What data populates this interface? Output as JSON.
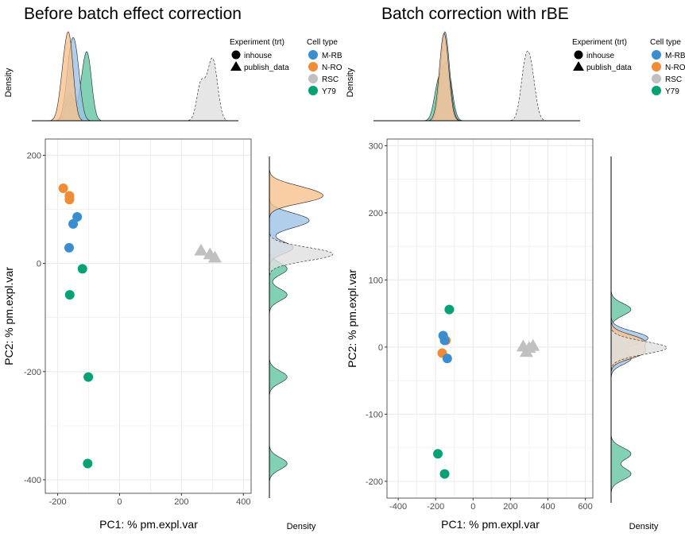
{
  "colors": {
    "M-RB": "#3a8ed0",
    "N-RO": "#f08c35",
    "RSC": "#c0c0c0",
    "Y79": "#06a175"
  },
  "legend": {
    "shape_title": "Experiment (trt)",
    "shapes": [
      {
        "label": "inhouse",
        "shape": "circle"
      },
      {
        "label": "publish_data",
        "shape": "triangle"
      }
    ],
    "color_title": "Cell type",
    "cells": [
      "M-RB",
      "N-RO",
      "RSC",
      "Y79"
    ]
  },
  "chart_data": [
    {
      "type": "scatter",
      "title": "Before batch effect correction",
      "xlabel": "PC1: % pm.expl.var",
      "ylabel": "PC2: % pm.expl.var",
      "top_density_label": "Density",
      "side_density_label": "Density",
      "xlim": [
        -240,
        425
      ],
      "ylim": [
        -425,
        230
      ],
      "xticks": [
        -200,
        0,
        200,
        400
      ],
      "yticks": [
        200,
        0,
        -200,
        -400
      ],
      "grid": true,
      "points": [
        {
          "x": -182,
          "y": 139,
          "cell": "N-RO",
          "shape": "circle"
        },
        {
          "x": -162,
          "y": 125,
          "cell": "N-RO",
          "shape": "circle"
        },
        {
          "x": -162,
          "y": 118,
          "cell": "N-RO",
          "shape": "circle"
        },
        {
          "x": -137,
          "y": 86,
          "cell": "M-RB",
          "shape": "circle"
        },
        {
          "x": -150,
          "y": 73,
          "cell": "M-RB",
          "shape": "circle"
        },
        {
          "x": -163,
          "y": 29,
          "cell": "M-RB",
          "shape": "circle"
        },
        {
          "x": -120,
          "y": -10,
          "cell": "Y79",
          "shape": "circle"
        },
        {
          "x": -161,
          "y": -58,
          "cell": "Y79",
          "shape": "circle"
        },
        {
          "x": -101,
          "y": -210,
          "cell": "Y79",
          "shape": "circle"
        },
        {
          "x": -103,
          "y": -370,
          "cell": "Y79",
          "shape": "circle"
        },
        {
          "x": 263,
          "y": 24,
          "cell": "RSC",
          "shape": "triangle"
        },
        {
          "x": 292,
          "y": 17,
          "cell": "RSC",
          "shape": "triangle"
        },
        {
          "x": 308,
          "y": 11,
          "cell": "RSC",
          "shape": "triangle"
        }
      ]
    },
    {
      "type": "scatter",
      "title": "Batch correction with rBE",
      "xlabel": "PC1: % pm.expl.var",
      "ylabel": "PC2: % pm.expl.var",
      "top_density_label": "Density",
      "side_density_label": "Density",
      "xlim": [
        -460,
        640
      ],
      "ylim": [
        -225,
        310
      ],
      "xticks": [
        -400,
        -200,
        0,
        200,
        400,
        600
      ],
      "yticks": [
        300,
        200,
        100,
        0,
        -100,
        -200
      ],
      "grid": true,
      "points": [
        {
          "x": -145,
          "y": 10,
          "cell": "N-RO",
          "shape": "circle"
        },
        {
          "x": -165,
          "y": -9,
          "cell": "N-RO",
          "shape": "circle"
        },
        {
          "x": -160,
          "y": 17,
          "cell": "M-RB",
          "shape": "circle"
        },
        {
          "x": -152,
          "y": 10,
          "cell": "M-RB",
          "shape": "circle"
        },
        {
          "x": -138,
          "y": -17,
          "cell": "M-RB",
          "shape": "circle"
        },
        {
          "x": -127,
          "y": 56,
          "cell": "Y79",
          "shape": "circle"
        },
        {
          "x": -188,
          "y": -159,
          "cell": "Y79",
          "shape": "circle"
        },
        {
          "x": -152,
          "y": -189,
          "cell": "Y79",
          "shape": "circle"
        },
        {
          "x": 268,
          "y": 1,
          "cell": "RSC",
          "shape": "triangle"
        },
        {
          "x": 300,
          "y": -1,
          "cell": "RSC",
          "shape": "triangle"
        },
        {
          "x": 320,
          "y": 2,
          "cell": "RSC",
          "shape": "triangle"
        },
        {
          "x": 285,
          "y": -7,
          "cell": "RSC",
          "shape": "triangle"
        }
      ]
    }
  ]
}
